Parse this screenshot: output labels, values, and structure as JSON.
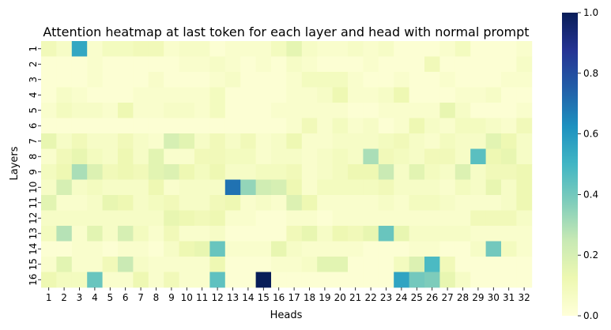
{
  "chart_data": {
    "type": "heatmap",
    "title": "Attention heatmap at last token for each layer and head with normal prompt",
    "xlabel": "Heads",
    "ylabel": "Layers",
    "x_categories": [
      "1",
      "2",
      "3",
      "4",
      "5",
      "6",
      "7",
      "8",
      "9",
      "10",
      "11",
      "12",
      "13",
      "14",
      "15",
      "16",
      "17",
      "18",
      "19",
      "20",
      "21",
      "22",
      "23",
      "24",
      "25",
      "26",
      "27",
      "28",
      "29",
      "30",
      "31",
      "32"
    ],
    "y_categories": [
      "1",
      "2",
      "3",
      "4",
      "5",
      "6",
      "7",
      "8",
      "9",
      "10",
      "11",
      "12",
      "13",
      "14",
      "15",
      "16"
    ],
    "colorbar": {
      "min": 0.0,
      "max": 1.0,
      "ticks": [
        "0.0",
        "0.2",
        "0.4",
        "0.6",
        "0.8",
        "1.0"
      ],
      "colormap": "YlGnBu"
    },
    "values": [
      [
        0.1,
        0.06,
        0.55,
        0.04,
        0.08,
        0.08,
        0.1,
        0.1,
        0.04,
        0.06,
        0.06,
        0.02,
        0.04,
        0.04,
        0.04,
        0.08,
        0.15,
        0.06,
        0.04,
        0.04,
        0.06,
        0.04,
        0.06,
        0.02,
        0.02,
        0.02,
        0.04,
        0.08,
        0.02,
        0.02,
        0.02,
        0.04
      ],
      [
        0.02,
        0.02,
        0.02,
        0.04,
        0.02,
        0.02,
        0.02,
        0.02,
        0.02,
        0.04,
        0.04,
        0.06,
        0.04,
        0.02,
        0.04,
        0.02,
        0.06,
        0.04,
        0.02,
        0.02,
        0.02,
        0.04,
        0.02,
        0.02,
        0.02,
        0.1,
        0.02,
        0.02,
        0.02,
        0.02,
        0.02,
        0.06
      ],
      [
        0.02,
        0.02,
        0.02,
        0.04,
        0.02,
        0.02,
        0.02,
        0.05,
        0.02,
        0.02,
        0.02,
        0.04,
        0.06,
        0.02,
        0.02,
        0.02,
        0.04,
        0.08,
        0.08,
        0.08,
        0.04,
        0.02,
        0.02,
        0.04,
        0.02,
        0.02,
        0.04,
        0.02,
        0.02,
        0.02,
        0.04,
        0.04
      ],
      [
        0.02,
        0.06,
        0.04,
        0.02,
        0.02,
        0.02,
        0.04,
        0.04,
        0.04,
        0.04,
        0.04,
        0.08,
        0.02,
        0.02,
        0.02,
        0.02,
        0.04,
        0.04,
        0.06,
        0.12,
        0.04,
        0.04,
        0.06,
        0.12,
        0.02,
        0.02,
        0.02,
        0.04,
        0.04,
        0.06,
        0.02,
        0.02
      ],
      [
        0.04,
        0.08,
        0.06,
        0.06,
        0.04,
        0.12,
        0.04,
        0.04,
        0.06,
        0.06,
        0.04,
        0.08,
        0.02,
        0.02,
        0.02,
        0.04,
        0.04,
        0.04,
        0.04,
        0.04,
        0.02,
        0.02,
        0.04,
        0.04,
        0.04,
        0.04,
        0.14,
        0.06,
        0.02,
        0.02,
        0.02,
        0.04
      ],
      [
        0.02,
        0.02,
        0.02,
        0.02,
        0.02,
        0.02,
        0.02,
        0.02,
        0.02,
        0.02,
        0.02,
        0.02,
        0.02,
        0.02,
        0.02,
        0.02,
        0.04,
        0.1,
        0.04,
        0.08,
        0.04,
        0.06,
        0.02,
        0.04,
        0.12,
        0.06,
        0.04,
        0.08,
        0.08,
        0.06,
        0.04,
        0.1
      ],
      [
        0.14,
        0.06,
        0.1,
        0.06,
        0.06,
        0.1,
        0.06,
        0.04,
        0.2,
        0.16,
        0.06,
        0.1,
        0.06,
        0.1,
        0.04,
        0.06,
        0.12,
        0.04,
        0.04,
        0.06,
        0.06,
        0.06,
        0.08,
        0.1,
        0.06,
        0.04,
        0.08,
        0.06,
        0.06,
        0.16,
        0.12,
        0.06
      ],
      [
        0.04,
        0.1,
        0.14,
        0.08,
        0.06,
        0.12,
        0.06,
        0.16,
        0.04,
        0.04,
        0.1,
        0.1,
        0.08,
        0.08,
        0.04,
        0.06,
        0.06,
        0.04,
        0.06,
        0.08,
        0.06,
        0.3,
        0.1,
        0.08,
        0.06,
        0.1,
        0.1,
        0.06,
        0.45,
        0.12,
        0.14,
        0.06
      ],
      [
        0.08,
        0.12,
        0.3,
        0.18,
        0.1,
        0.12,
        0.1,
        0.16,
        0.18,
        0.12,
        0.08,
        0.12,
        0.06,
        0.06,
        0.08,
        0.08,
        0.1,
        0.04,
        0.06,
        0.08,
        0.12,
        0.12,
        0.24,
        0.06,
        0.16,
        0.08,
        0.06,
        0.18,
        0.06,
        0.1,
        0.1,
        0.12
      ],
      [
        0.06,
        0.2,
        0.06,
        0.08,
        0.06,
        0.06,
        0.06,
        0.12,
        0.04,
        0.06,
        0.06,
        0.06,
        0.7,
        0.34,
        0.22,
        0.2,
        0.12,
        0.04,
        0.08,
        0.08,
        0.08,
        0.08,
        0.1,
        0.06,
        0.06,
        0.06,
        0.04,
        0.08,
        0.06,
        0.14,
        0.06,
        0.12
      ],
      [
        0.16,
        0.04,
        0.04,
        0.06,
        0.14,
        0.12,
        0.06,
        0.08,
        0.1,
        0.06,
        0.06,
        0.1,
        0.12,
        0.04,
        0.06,
        0.04,
        0.18,
        0.12,
        0.04,
        0.04,
        0.04,
        0.04,
        0.06,
        0.04,
        0.08,
        0.08,
        0.06,
        0.04,
        0.04,
        0.04,
        0.06,
        0.12
      ],
      [
        0.06,
        0.06,
        0.06,
        0.06,
        0.06,
        0.06,
        0.06,
        0.06,
        0.14,
        0.12,
        0.1,
        0.12,
        0.04,
        0.04,
        0.02,
        0.02,
        0.04,
        0.04,
        0.02,
        0.04,
        0.04,
        0.04,
        0.04,
        0.04,
        0.04,
        0.04,
        0.04,
        0.04,
        0.1,
        0.1,
        0.1,
        0.06
      ],
      [
        0.08,
        0.28,
        0.04,
        0.16,
        0.06,
        0.2,
        0.08,
        0.04,
        0.1,
        0.04,
        0.04,
        0.06,
        0.02,
        0.02,
        0.02,
        0.02,
        0.1,
        0.14,
        0.06,
        0.12,
        0.1,
        0.14,
        0.42,
        0.14,
        0.06,
        0.06,
        0.06,
        0.06,
        0.04,
        0.04,
        0.04,
        0.04
      ],
      [
        0.02,
        0.02,
        0.04,
        0.04,
        0.02,
        0.04,
        0.04,
        0.02,
        0.06,
        0.12,
        0.14,
        0.42,
        0.04,
        0.04,
        0.04,
        0.14,
        0.06,
        0.04,
        0.04,
        0.04,
        0.04,
        0.02,
        0.02,
        0.02,
        0.04,
        0.04,
        0.02,
        0.02,
        0.06,
        0.4,
        0.08,
        0.04
      ],
      [
        0.04,
        0.16,
        0.04,
        0.04,
        0.1,
        0.24,
        0.06,
        0.04,
        0.04,
        0.04,
        0.04,
        0.12,
        0.02,
        0.02,
        0.02,
        0.04,
        0.04,
        0.06,
        0.16,
        0.16,
        0.02,
        0.02,
        0.02,
        0.08,
        0.18,
        0.48,
        0.1,
        0.02,
        0.02,
        0.02,
        0.02,
        0.02
      ],
      [
        0.12,
        0.08,
        0.08,
        0.42,
        0.04,
        0.04,
        0.12,
        0.04,
        0.1,
        0.04,
        0.04,
        0.44,
        0.02,
        0.02,
        1.0,
        0.02,
        0.02,
        0.02,
        0.02,
        0.02,
        0.02,
        0.02,
        0.02,
        0.56,
        0.4,
        0.38,
        0.14,
        0.06,
        0.02,
        0.02,
        0.02,
        0.02
      ]
    ]
  }
}
